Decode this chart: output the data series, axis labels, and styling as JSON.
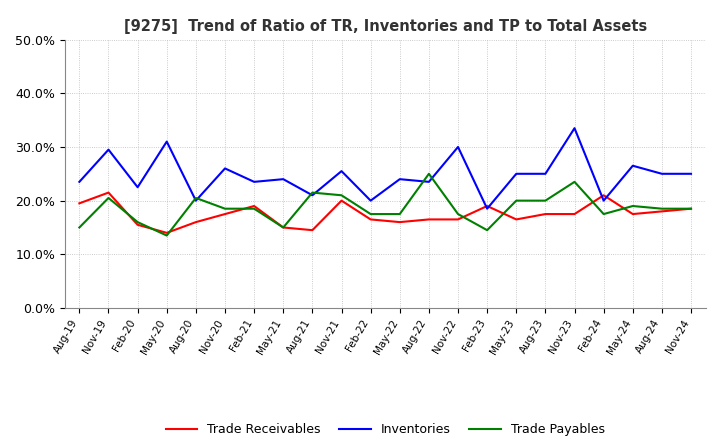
{
  "title": "[9275]  Trend of Ratio of TR, Inventories and TP to Total Assets",
  "x_labels": [
    "Aug-19",
    "Nov-19",
    "Feb-20",
    "May-20",
    "Aug-20",
    "Nov-20",
    "Feb-21",
    "May-21",
    "Aug-21",
    "Nov-21",
    "Feb-22",
    "May-22",
    "Aug-22",
    "Nov-22",
    "Feb-23",
    "May-23",
    "Aug-23",
    "Nov-23",
    "Feb-24",
    "May-24",
    "Aug-24",
    "Nov-24"
  ],
  "trade_receivables": [
    0.195,
    0.215,
    0.155,
    0.14,
    0.16,
    0.175,
    0.19,
    0.15,
    0.145,
    0.2,
    0.165,
    0.16,
    0.165,
    0.165,
    0.19,
    0.165,
    0.175,
    0.175,
    0.21,
    0.175,
    0.18,
    0.185
  ],
  "inventories": [
    0.235,
    0.295,
    0.225,
    0.31,
    0.2,
    0.26,
    0.235,
    0.24,
    0.21,
    0.255,
    0.2,
    0.24,
    0.235,
    0.3,
    0.185,
    0.25,
    0.25,
    0.335,
    0.2,
    0.265,
    0.25,
    0.25
  ],
  "trade_payables": [
    0.15,
    0.205,
    0.16,
    0.135,
    0.205,
    0.185,
    0.185,
    0.15,
    0.215,
    0.21,
    0.175,
    0.175,
    0.25,
    0.175,
    0.145,
    0.2,
    0.2,
    0.235,
    0.175,
    0.19,
    0.185,
    0.185
  ],
  "ylim": [
    0.0,
    0.5
  ],
  "yticks": [
    0.0,
    0.1,
    0.2,
    0.3,
    0.4,
    0.5
  ],
  "line_colors": {
    "trade_receivables": "#ff0000",
    "inventories": "#0000ff",
    "trade_payables": "#008000"
  },
  "legend_labels": [
    "Trade Receivables",
    "Inventories",
    "Trade Payables"
  ],
  "background_color": "#ffffff",
  "grid_color": "#bbbbbb"
}
